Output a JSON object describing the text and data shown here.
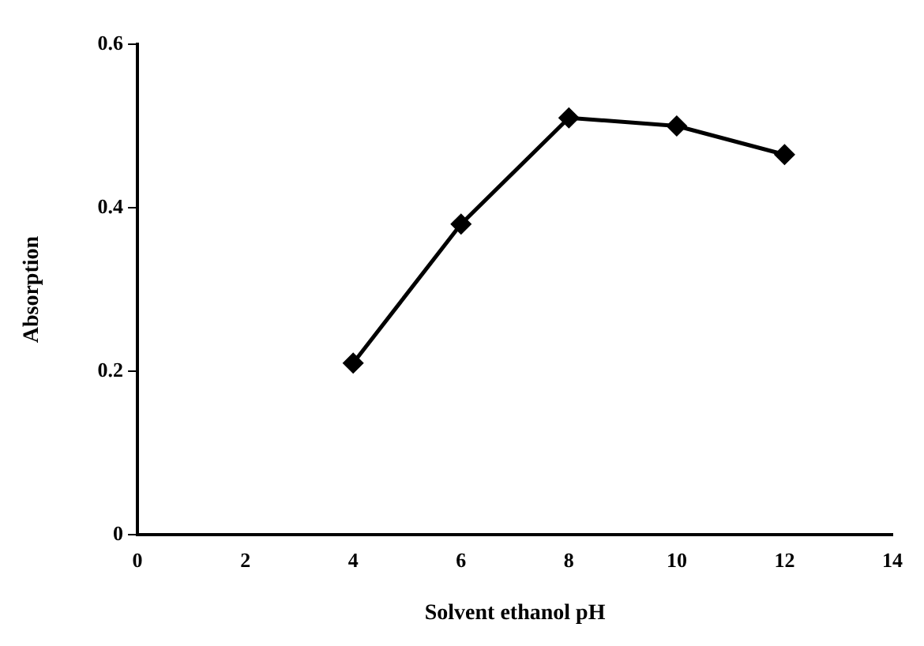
{
  "chart_data": {
    "type": "line",
    "xlabel": "Solvent ethanol pH",
    "ylabel": "Absorption",
    "x": [
      4,
      6,
      8,
      10,
      12
    ],
    "series": [
      {
        "color": "#000000",
        "values": [
          0.21,
          0.38,
          0.51,
          0.5,
          0.465
        ]
      }
    ],
    "xlim": [
      0,
      14
    ],
    "xticks": [
      0,
      2,
      4,
      6,
      8,
      10,
      12,
      14
    ],
    "ylim": [
      0,
      0.6
    ],
    "yticks": [
      0,
      0.2,
      0.4,
      0.6
    ],
    "grid": false,
    "legend": false,
    "marker": "diamond",
    "line_style": "solid"
  }
}
